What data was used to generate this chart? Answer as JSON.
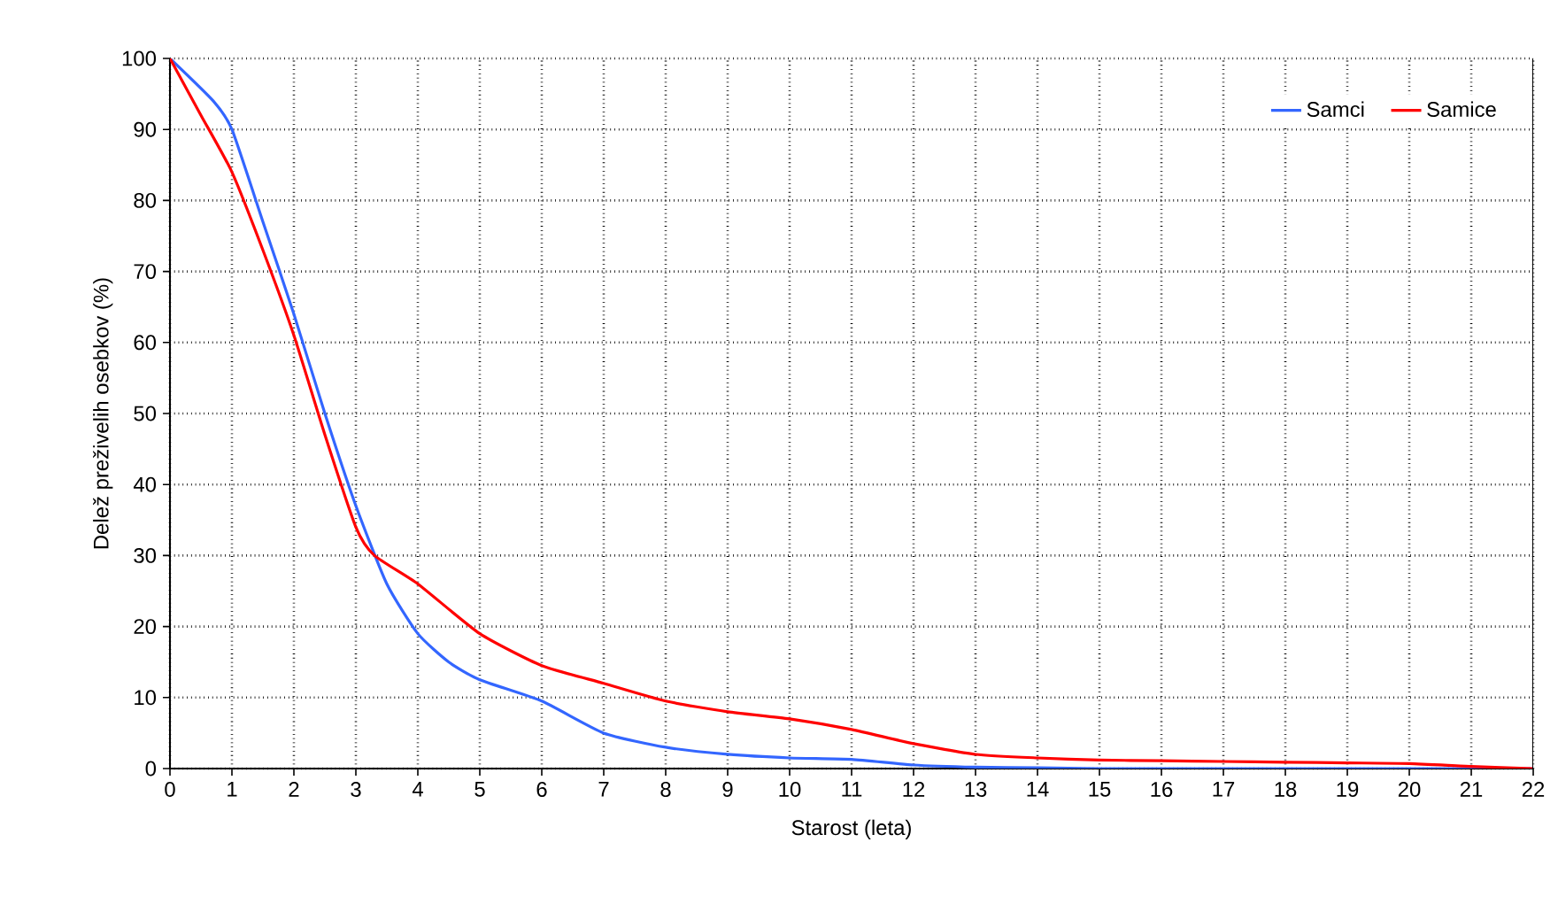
{
  "chart_data": {
    "type": "line",
    "xlabel": "Starost (leta)",
    "ylabel": "Delež preživelih osebkov (%)",
    "xlim": [
      0,
      22
    ],
    "xticks": [
      0,
      1,
      2,
      3,
      4,
      5,
      6,
      7,
      8,
      9,
      10,
      11,
      12,
      13,
      14,
      15,
      16,
      17,
      18,
      19,
      20,
      21,
      22
    ],
    "ylim": [
      0,
      100
    ],
    "yticks": [
      0,
      10,
      20,
      30,
      40,
      50,
      60,
      70,
      80,
      90,
      100
    ],
    "grid": true,
    "legend": "top right",
    "line_style": "solid",
    "marker": "none",
    "series": [
      {
        "name": "Samci",
        "color": "#3366ff",
        "x": [
          0,
          0.7,
          1,
          1.5,
          2,
          2.5,
          3,
          3.5,
          4,
          4.5,
          5,
          6,
          7,
          8,
          9,
          10,
          11,
          12,
          13,
          14,
          15,
          16,
          17,
          18,
          19,
          20,
          21,
          22
        ],
        "values": [
          100,
          94,
          90,
          77,
          64,
          50,
          37,
          26,
          19,
          15,
          12.5,
          9.5,
          5,
          3,
          2,
          1.5,
          1.3,
          0.5,
          0.2,
          0.1,
          0,
          0,
          0,
          0,
          0,
          0,
          0,
          0
        ]
      },
      {
        "name": "Samice",
        "color": "#ff0000",
        "x": [
          0,
          0.5,
          1,
          1.5,
          2,
          2.5,
          3,
          3.3,
          4,
          5,
          6,
          7,
          8,
          9,
          10,
          11,
          12,
          13,
          14,
          15,
          16,
          17,
          18,
          19,
          20,
          21,
          22
        ],
        "values": [
          100,
          92,
          84,
          73,
          61,
          47,
          34,
          30,
          26,
          19,
          14.5,
          12,
          9.5,
          8,
          7,
          5.5,
          3.5,
          2,
          1.5,
          1.2,
          1.1,
          1,
          0.9,
          0.8,
          0.7,
          0.3,
          0
        ]
      }
    ]
  }
}
